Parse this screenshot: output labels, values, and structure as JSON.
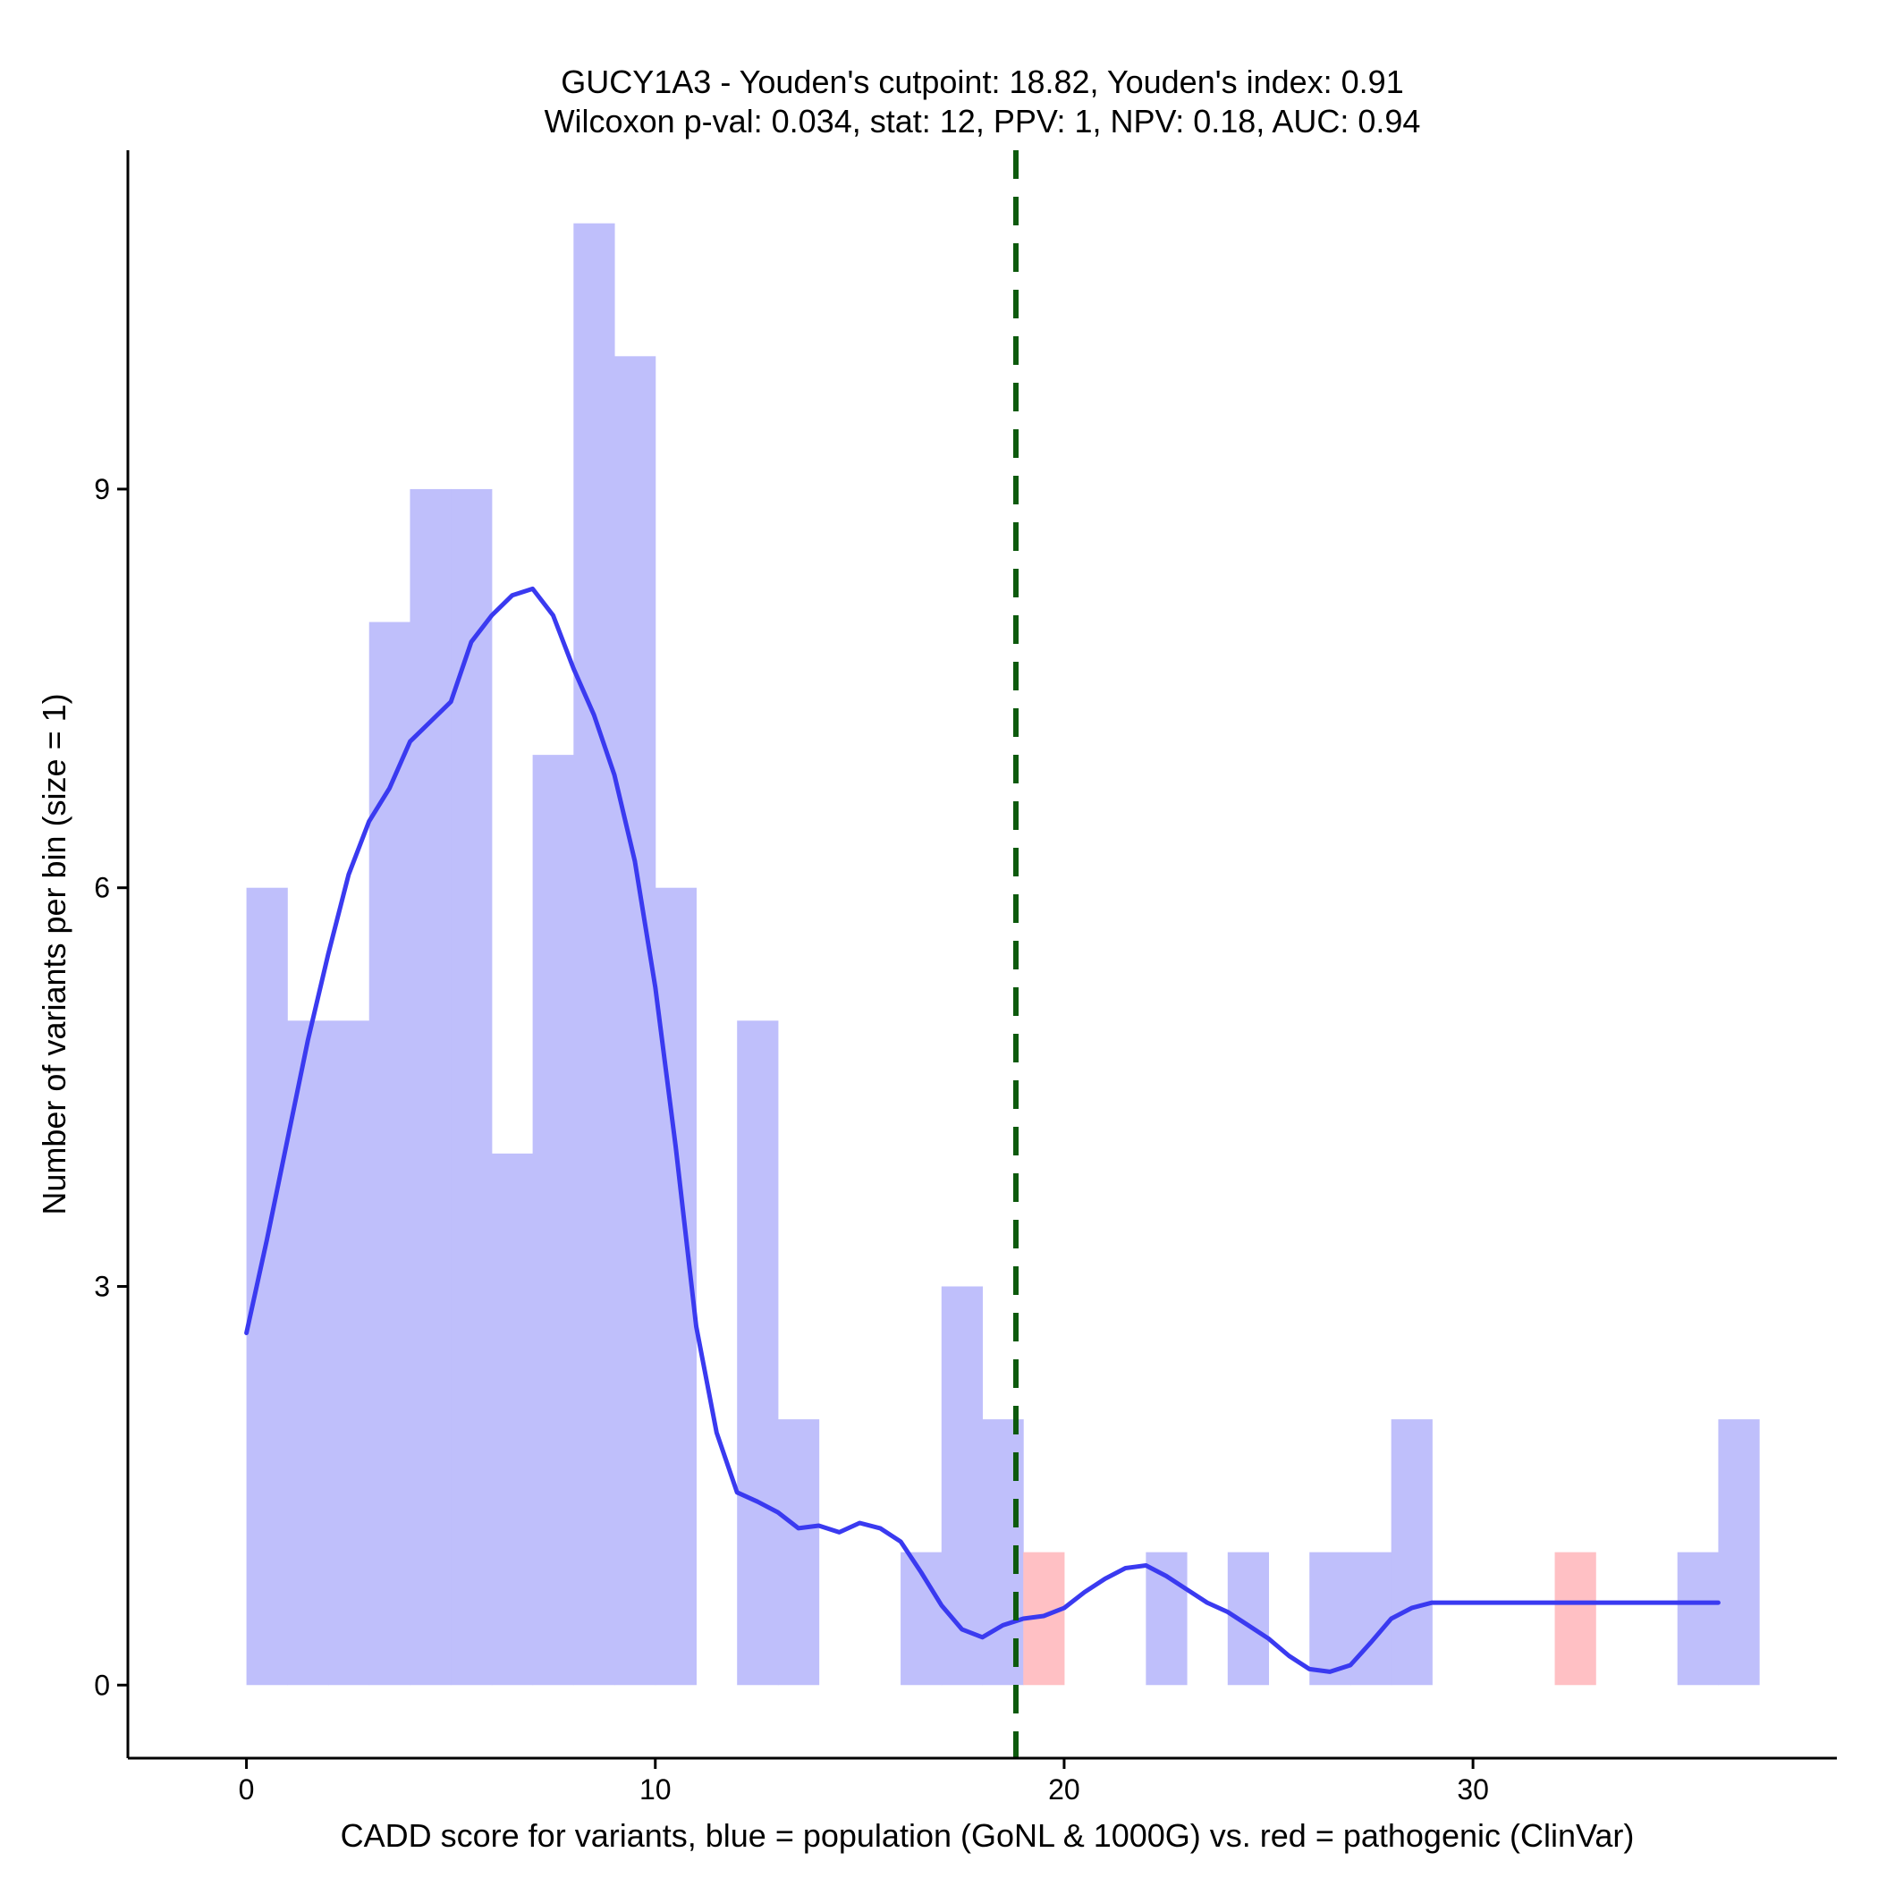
{
  "chart_data": {
    "type": "bar",
    "title_line1": "GUCY1A3 - Youden's cutpoint: 18.82, Youden's index: 0.91",
    "title_line2": "Wilcoxon p-val: 0.034, stat: 12, PPV: 1, NPV: 0.18, AUC: 0.94",
    "xlabel": "CADD score for variants, blue = population (GoNL & 1000G) vs. red = pathogenic (ClinVar)",
    "ylabel": "Number of variants per bin (size = 1)",
    "xlim": [
      -2.9,
      38.9
    ],
    "ylim": [
      -0.55,
      11.55
    ],
    "x_ticks": [
      0,
      10,
      20,
      30
    ],
    "y_ticks": [
      0,
      3,
      6,
      9
    ],
    "bin_size": 1,
    "grid": false,
    "cutpoint": 18.82,
    "colors": {
      "population": "#bfbffb",
      "pathogenic": "#ffc0c4",
      "density": "#3a3af0",
      "cutpoint": "#0d5a0d"
    },
    "series": [
      {
        "name": "population (GoNL & 1000G)",
        "bin_start": [
          0,
          1,
          2,
          3,
          4,
          5,
          6,
          7,
          8,
          9,
          10,
          12,
          13,
          16,
          17,
          18,
          22,
          24,
          26,
          27,
          28,
          35,
          36
        ],
        "values": [
          6,
          5,
          5,
          8,
          9,
          9,
          4,
          7,
          11,
          10,
          6,
          5,
          2,
          1,
          3,
          2,
          1,
          1,
          1,
          1,
          2,
          1,
          2
        ]
      },
      {
        "name": "pathogenic (ClinVar)",
        "bin_start": [
          19,
          32
        ],
        "values": [
          1,
          1
        ]
      }
    ],
    "density_curve": {
      "x": [
        0,
        0.5,
        1,
        1.5,
        2,
        2.5,
        3,
        3.5,
        4,
        4.5,
        5,
        5.5,
        6,
        6.5,
        7,
        7.5,
        8,
        8.5,
        9,
        9.5,
        10,
        10.5,
        11,
        11.5,
        12,
        12.5,
        13,
        13.5,
        14,
        14.5,
        15,
        15.5,
        16,
        16.5,
        17,
        17.5,
        18,
        18.5,
        19,
        19.5,
        20,
        20.5,
        21,
        21.5,
        22,
        22.5,
        23,
        23.5,
        24,
        24.5,
        25,
        25.5,
        26,
        26.5,
        27,
        27.5,
        28,
        28.5,
        29,
        29.5,
        30,
        30.5,
        31,
        31.5,
        32,
        32.5,
        33,
        33.5,
        34,
        34.5,
        35,
        35.5,
        36
      ],
      "y": [
        2.65,
        3.35,
        4.1,
        4.85,
        5.5,
        6.1,
        6.5,
        6.75,
        7.1,
        7.25,
        7.4,
        7.85,
        8.05,
        8.2,
        8.25,
        8.05,
        7.65,
        7.3,
        6.85,
        6.2,
        5.25,
        4.05,
        2.7,
        1.9,
        1.45,
        1.38,
        1.3,
        1.18,
        1.2,
        1.15,
        1.22,
        1.18,
        1.08,
        0.85,
        0.6,
        0.42,
        0.36,
        0.45,
        0.5,
        0.52,
        0.58,
        0.7,
        0.8,
        0.88,
        0.9,
        0.82,
        0.72,
        0.62,
        0.55,
        0.45,
        0.35,
        0.22,
        0.12,
        0.1,
        0.15,
        0.32,
        0.5,
        0.58,
        0.62,
        0.62,
        0.62,
        0.62,
        0.62,
        0.62,
        0.62,
        0.62,
        0.62,
        0.62,
        0.62,
        0.62,
        0.62,
        0.62,
        0.62
      ]
    }
  }
}
